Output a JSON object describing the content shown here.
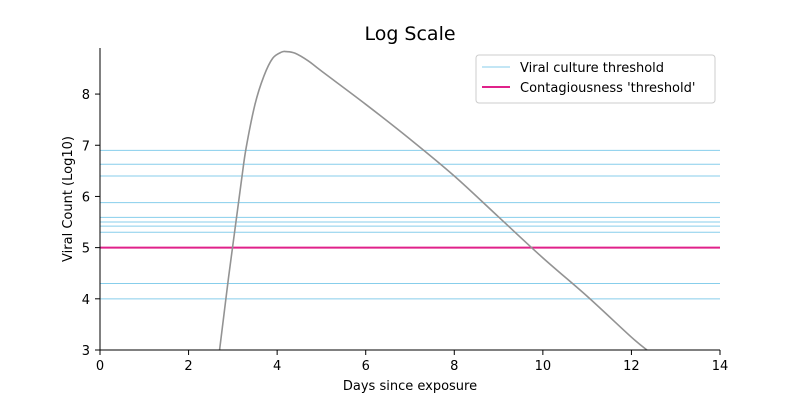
{
  "chart_data": {
    "type": "line",
    "title": "Log Scale",
    "xlabel": "Days since exposure",
    "ylabel": "Viral Count (Log10)",
    "xlim": [
      0,
      14
    ],
    "ylim": [
      3,
      8.9
    ],
    "xticks": [
      0,
      2,
      4,
      6,
      8,
      10,
      12,
      14
    ],
    "yticks": [
      3,
      4,
      5,
      6,
      7,
      8
    ],
    "grid": false,
    "legend_position": "top-right",
    "legend": [
      {
        "label": "Viral culture threshold",
        "color": "#87ceeb"
      },
      {
        "label": "Contagiousness 'threshold'",
        "color": "#e0218a"
      }
    ],
    "viral_culture_thresholds": [
      6.9,
      6.63,
      6.4,
      5.88,
      5.59,
      5.5,
      5.42,
      5.3,
      4.3,
      4.0
    ],
    "contagiousness_threshold": 5.0,
    "series": [
      {
        "color": "#939393",
        "x": [
          2.7,
          2.8,
          2.9,
          3.0,
          3.1,
          3.2,
          3.3,
          3.5,
          3.7,
          3.9,
          4.1,
          4.2,
          4.4,
          4.7,
          5.0,
          6.0,
          7.0,
          8.0,
          9.0,
          10.0,
          11.0,
          12.0,
          12.35
        ],
        "values": [
          3.0,
          3.7,
          4.4,
          5.05,
          5.7,
          6.35,
          6.95,
          7.8,
          8.35,
          8.7,
          8.82,
          8.83,
          8.8,
          8.65,
          8.45,
          7.8,
          7.12,
          6.4,
          5.6,
          4.8,
          4.05,
          3.25,
          3.0
        ]
      }
    ]
  }
}
